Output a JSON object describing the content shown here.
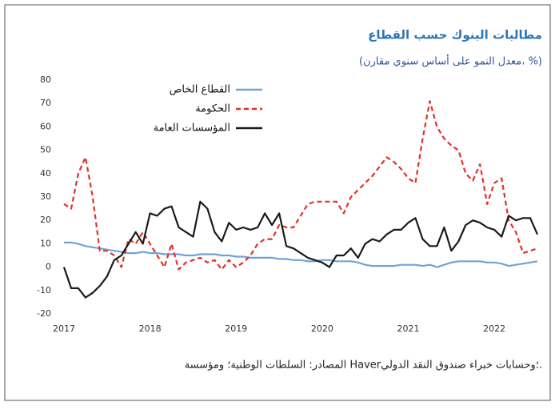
{
  "chart_data": {
    "type": "line",
    "title": "مطالبات البنوك حسب القطاع",
    "subtitle": "(معدل النمو على أساس سنوي مقارن، %)",
    "source": "المصادر: السلطات الوطنية؛ ومؤسسة Haver؛وحسابات خبراء صندوق النقد الدولي.",
    "categories": [
      "2017",
      null,
      null,
      null,
      null,
      null,
      null,
      null,
      null,
      null,
      null,
      null,
      "2018",
      null,
      null,
      null,
      null,
      null,
      null,
      null,
      null,
      null,
      null,
      null,
      "2019",
      null,
      null,
      null,
      null,
      null,
      null,
      null,
      null,
      null,
      null,
      null,
      "2020",
      null,
      null,
      null,
      null,
      null,
      null,
      null,
      null,
      null,
      null,
      null,
      "2021",
      null,
      null,
      null,
      null,
      null,
      null,
      null,
      null,
      null,
      null,
      null,
      "2022",
      null,
      null,
      null,
      null,
      null,
      null
    ],
    "series": [
      {
        "name": "القطاع الخاص",
        "color": "#6fa3d6",
        "values": [
          10.5,
          10.5,
          10,
          9,
          8.5,
          8,
          7.5,
          7,
          6.5,
          6,
          6,
          6.5,
          6,
          6,
          5.5,
          5.5,
          5.5,
          5,
          5,
          5.5,
          5.5,
          5.5,
          5,
          5,
          4.5,
          4.5,
          4,
          4,
          4,
          4,
          3.5,
          3.5,
          3,
          3,
          2.5,
          2.5,
          3,
          3,
          2.5,
          2.5,
          2.5,
          2,
          1,
          0.5,
          0.5,
          0.5,
          0.5,
          1,
          1,
          1,
          0.5,
          1,
          0,
          1,
          2,
          2.5,
          2.5,
          2.5,
          2.5,
          2,
          2,
          1.5,
          0.5,
          1,
          1.5,
          2,
          2.5
        ]
      },
      {
        "name": "الحكومة",
        "color": "#e0312b",
        "line_style": "dashed",
        "values": [
          27,
          25,
          40,
          47,
          30,
          7,
          7,
          5,
          0,
          12,
          10,
          15,
          10,
          5,
          0,
          10,
          -1,
          2,
          3,
          4,
          2,
          3,
          -1,
          3,
          0,
          2,
          5,
          10,
          12,
          12,
          18,
          17,
          17,
          22,
          27,
          28,
          28,
          28,
          28,
          23,
          30,
          33,
          36,
          39,
          43,
          47,
          45,
          42,
          38,
          36,
          55,
          71,
          60,
          55,
          52,
          50,
          40,
          37,
          44,
          27,
          36,
          38,
          20,
          15,
          6,
          7,
          8
        ]
      },
      {
        "name": "المؤسسات العامة",
        "color": "#1a1a1a",
        "values": [
          0,
          -9,
          -9,
          -13,
          -11,
          -8,
          -4,
          3,
          5,
          10,
          15,
          10,
          23,
          22,
          25,
          26,
          17,
          15,
          13,
          28,
          25,
          15,
          11,
          19,
          16,
          17,
          16,
          17,
          23,
          18,
          23,
          9,
          8,
          6,
          4,
          3,
          2,
          0,
          5,
          5,
          8,
          4,
          10,
          12,
          11,
          14,
          16,
          16,
          19,
          21,
          12,
          9,
          9,
          17,
          7,
          11,
          18,
          20,
          19,
          17,
          16,
          13,
          22,
          20,
          21,
          21,
          14
        ]
      }
    ],
    "ylim": [
      -20,
      80
    ],
    "yticks": [
      -20,
      -10,
      0,
      10,
      20,
      30,
      40,
      50,
      60,
      70,
      80
    ],
    "grid": false
  }
}
